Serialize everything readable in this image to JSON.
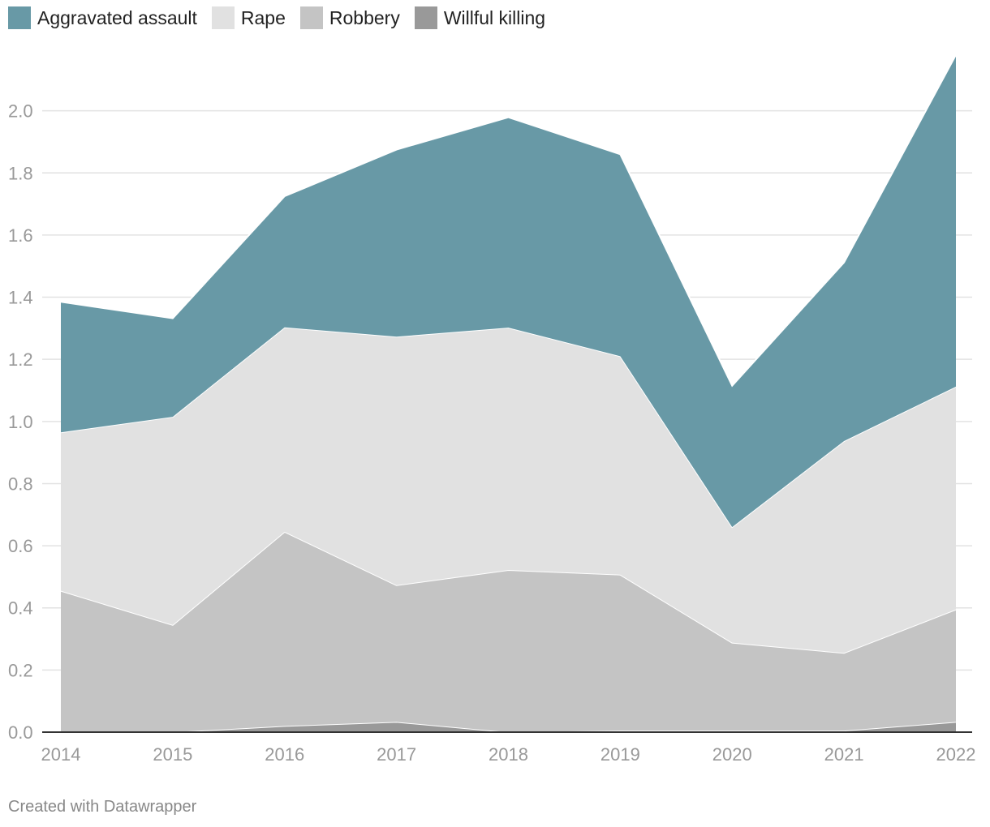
{
  "chart_data": {
    "type": "area",
    "stacked": true,
    "categories": [
      "2014",
      "2015",
      "2016",
      "2017",
      "2018",
      "2019",
      "2020",
      "2021",
      "2022"
    ],
    "series": [
      {
        "name": "Willful killing",
        "color": "#999999",
        "values": [
          0.0,
          0.0,
          0.02,
          0.033,
          0.0,
          0.005,
          0.005,
          0.005,
          0.033
        ]
      },
      {
        "name": "Robbery",
        "color": "#c4c4c4",
        "values": [
          0.455,
          0.345,
          0.625,
          0.44,
          0.522,
          0.502,
          0.283,
          0.25,
          0.362
        ]
      },
      {
        "name": "Rape",
        "color": "#e1e1e1",
        "values": [
          0.51,
          0.67,
          0.658,
          0.8,
          0.78,
          0.703,
          0.372,
          0.682,
          0.717
        ]
      },
      {
        "name": "Aggravated assault",
        "color": "#6899a6",
        "values": [
          0.42,
          0.317,
          0.422,
          0.602,
          0.677,
          0.65,
          0.455,
          0.575,
          1.068
        ]
      }
    ],
    "legend": [
      "Aggravated assault",
      "Rape",
      "Robbery",
      "Willful killing"
    ],
    "y_ticks": [
      "0.0",
      "0.2",
      "0.4",
      "0.6",
      "0.8",
      "1.0",
      "1.2",
      "1.4",
      "1.6",
      "1.8",
      "2.0"
    ],
    "ylim": [
      0,
      2.2
    ],
    "grid": true,
    "legend_position": "top-left"
  },
  "legend_items": [
    {
      "label": "Aggravated assault",
      "color": "#6899a6"
    },
    {
      "label": "Rape",
      "color": "#e1e1e1"
    },
    {
      "label": "Robbery",
      "color": "#c4c4c4"
    },
    {
      "label": "Willful killing",
      "color": "#999999"
    }
  ],
  "footer": {
    "text": "Created with Datawrapper"
  }
}
